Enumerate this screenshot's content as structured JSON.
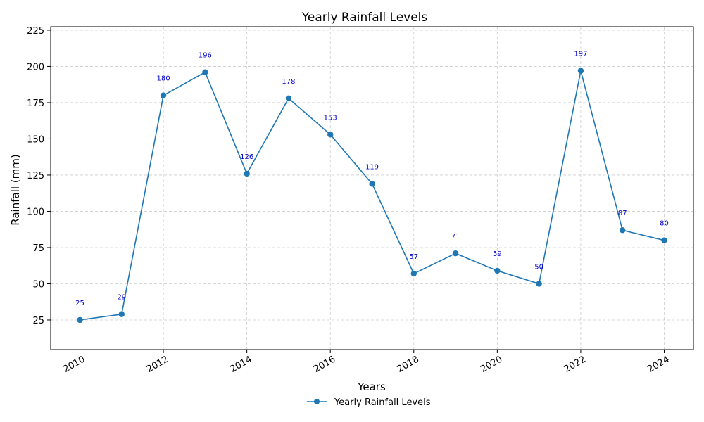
{
  "chart_data": {
    "type": "line",
    "title": "Yearly Rainfall Levels",
    "xlabel": "Years",
    "ylabel": "Rainfall (mm)",
    "x": [
      2010,
      2011,
      2012,
      2013,
      2014,
      2015,
      2016,
      2017,
      2018,
      2019,
      2020,
      2021,
      2022,
      2023,
      2024
    ],
    "series": [
      {
        "name": "Yearly Rainfall Levels",
        "values": [
          25,
          29,
          180,
          196,
          126,
          178,
          153,
          119,
          57,
          71,
          59,
          50,
          197,
          87,
          80
        ],
        "color": "#1f77b4"
      }
    ],
    "data_labels": [
      "25",
      "29",
      "180",
      "196",
      "126",
      "178",
      "153",
      "119",
      "57",
      "71",
      "59",
      "50",
      "197",
      "87",
      "80"
    ],
    "data_label_color": "#0000cc",
    "xlim": [
      2009.3,
      2024.7
    ],
    "ylim": [
      4.6,
      227.4
    ],
    "x_ticks": [
      2010,
      2012,
      2014,
      2016,
      2018,
      2020,
      2022,
      2024
    ],
    "x_tick_labels": [
      "2010",
      "2012",
      "2014",
      "2016",
      "2018",
      "2020",
      "2022",
      "2024"
    ],
    "y_ticks": [
      25,
      50,
      75,
      100,
      125,
      150,
      175,
      200,
      225
    ],
    "y_tick_labels": [
      "25",
      "50",
      "75",
      "100",
      "125",
      "150",
      "175",
      "200",
      "225"
    ],
    "grid": true,
    "legend_position": "bottom-center"
  }
}
